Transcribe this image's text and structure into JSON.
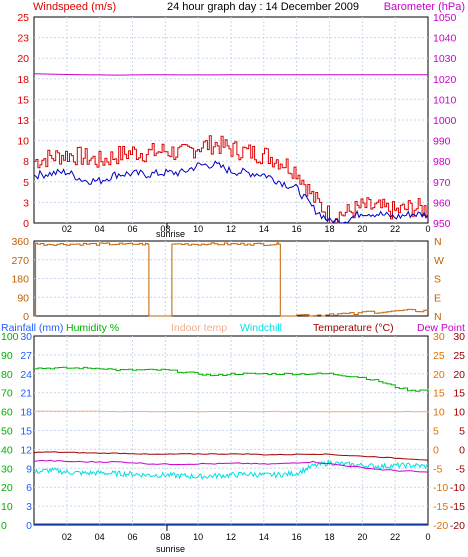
{
  "header": {
    "title": "24 hour graph day : 14 December 2009",
    "windspeed_label": "Windspeed (m/s)",
    "barometer_label": "Barometer (hPa)"
  },
  "legend": {
    "rainfall": "Rainfall (mm)",
    "humidity": "Humidity %",
    "indoor": "Indoor temp",
    "windchill": "Windchill",
    "temperature": "Temperature (°C)",
    "dewpoint": "Dew Point"
  },
  "x_axis": {
    "ticks": [
      "02",
      "04",
      "06",
      "08",
      "10",
      "12",
      "14",
      "16",
      "18",
      "20",
      "22",
      "0"
    ],
    "sunrise_label": "sunrise"
  },
  "colors": {
    "wind_gust": "#e00000",
    "wind_avg": "#0000c0",
    "barometer": "#cc00cc",
    "direction": "#c06000",
    "humidity": "#00b000",
    "indoor": "#f0b090",
    "windchill": "#00e0e0",
    "temperature": "#a00000",
    "dewpoint": "#cc00cc",
    "rainfall": "#2060ff"
  },
  "chart_data": [
    {
      "type": "line",
      "name": "windspeed-barometer",
      "x": [
        0,
        1,
        2,
        3,
        4,
        5,
        6,
        7,
        8,
        9,
        10,
        11,
        12,
        13,
        14,
        15,
        16,
        17,
        18,
        19,
        20,
        21,
        22,
        23,
        24
      ],
      "y_left_ticks": [
        0,
        3,
        5,
        8,
        10,
        13,
        15,
        18,
        20,
        23,
        25
      ],
      "y_right_ticks": [
        950,
        960,
        970,
        980,
        990,
        1000,
        1010,
        1020,
        1030,
        1040,
        1050
      ],
      "ylim_left": [
        0,
        25
      ],
      "ylim_right": [
        950,
        1050
      ],
      "series": [
        {
          "name": "gust",
          "axis": "left",
          "values": [
            7.5,
            8.0,
            8.3,
            8.0,
            7.5,
            8.2,
            8.6,
            8.5,
            8.8,
            8.4,
            9.3,
            9.6,
            9.0,
            8.6,
            8.3,
            7.5,
            6.3,
            3.0,
            0.9,
            1.2,
            2.0,
            1.8,
            1.4,
            1.9,
            1.6
          ]
        },
        {
          "name": "average",
          "axis": "left",
          "values": [
            5.8,
            6.0,
            6.2,
            5.2,
            5.1,
            5.9,
            6.0,
            5.9,
            6.1,
            6.1,
            7.0,
            7.1,
            6.3,
            6.1,
            5.9,
            5.0,
            4.2,
            1.8,
            0.2,
            0.3,
            1.3,
            1.1,
            0.7,
            1.1,
            1.0
          ]
        },
        {
          "name": "barometer",
          "axis": "right",
          "values": [
            1022.5,
            1022.3,
            1022.1,
            1022.0,
            1021.9,
            1021.8,
            1021.9,
            1022.0,
            1022.0,
            1021.9,
            1021.9,
            1021.9,
            1022.0,
            1022.0,
            1022.0,
            1022.0,
            1022.0,
            1022.0,
            1022.0,
            1022.0,
            1022.0,
            1022.0,
            1022.0,
            1022.0,
            1022.0
          ]
        }
      ]
    },
    {
      "type": "line",
      "name": "wind-direction",
      "y_left_ticks": [
        0,
        90,
        180,
        270,
        360
      ],
      "y_right_ticks": [
        "N",
        "E",
        "S",
        "W",
        "N"
      ],
      "ylim": [
        0,
        360
      ],
      "x": [
        0,
        0.1,
        0.2,
        5.4,
        6.9,
        7.0,
        8.3,
        8.4,
        10.6,
        13.0,
        14.9,
        15.0,
        16,
        18,
        20,
        22,
        24
      ],
      "values": [
        0,
        350,
        345,
        345,
        345,
        0,
        0,
        345,
        345,
        345,
        345,
        0,
        5,
        10,
        20,
        25,
        28
      ]
    },
    {
      "type": "line",
      "name": "temperature-humidity",
      "x": [
        0,
        1,
        2,
        3,
        4,
        5,
        6,
        7,
        8,
        9,
        10,
        11,
        12,
        13,
        14,
        15,
        16,
        17,
        18,
        19,
        20,
        21,
        22,
        23,
        24
      ],
      "y_left_ticks": [
        0,
        10,
        20,
        30,
        40,
        50,
        60,
        70,
        80,
        90,
        100
      ],
      "y_rain_ticks": [
        0,
        3,
        6,
        9,
        12,
        15,
        18,
        21,
        24,
        27,
        30
      ],
      "y_right_ticks": [
        -20,
        -15,
        -10,
        -5,
        0,
        5,
        10,
        15,
        20,
        25,
        30
      ],
      "ylim_left": [
        0,
        100
      ],
      "ylim_right": [
        -20,
        30
      ],
      "series": [
        {
          "name": "humidity",
          "axis": "left",
          "values": [
            83,
            83,
            83,
            83,
            83,
            82,
            82,
            82,
            82,
            81,
            80,
            79,
            80,
            80,
            80,
            80,
            80,
            80,
            80,
            79,
            78,
            76,
            73,
            71,
            72
          ]
        },
        {
          "name": "indoor",
          "axis": "right",
          "values": [
            10.1,
            10.1,
            10.1,
            10.1,
            10.1,
            10.0,
            10.0,
            10.0,
            10.0,
            10.0,
            10.0,
            10.0,
            10.0,
            10.0,
            10.0,
            10.0,
            10.0,
            10.0,
            10.0,
            10.0,
            10.0,
            10.0,
            10.0,
            10.0,
            10.0
          ]
        },
        {
          "name": "temperature",
          "axis": "right",
          "values": [
            -0.8,
            -0.7,
            -0.8,
            -0.9,
            -1.0,
            -1.0,
            -1.1,
            -1.3,
            -1.3,
            -1.2,
            -1.2,
            -1.2,
            -1.2,
            -1.2,
            -1.4,
            -1.4,
            -1.3,
            -1.2,
            -1.3,
            -1.6,
            -1.8,
            -2.0,
            -2.3,
            -2.5,
            -2.8
          ]
        },
        {
          "name": "dewpoint",
          "axis": "right",
          "values": [
            -3.0,
            -3.0,
            -3.2,
            -3.3,
            -3.3,
            -3.3,
            -3.5,
            -3.8,
            -3.9,
            -3.9,
            -3.8,
            -3.8,
            -3.7,
            -3.7,
            -3.9,
            -3.8,
            -3.5,
            -3.3,
            -3.8,
            -4.3,
            -4.8,
            -5.3,
            -5.6,
            -5.8,
            -6.1
          ]
        },
        {
          "name": "windchill",
          "axis": "right",
          "values": [
            -6.0,
            -5.5,
            -6.0,
            -6.3,
            -6.2,
            -6.4,
            -6.5,
            -6.8,
            -6.8,
            -7.0,
            -7.2,
            -7.0,
            -6.8,
            -6.5,
            -6.8,
            -6.7,
            -6.3,
            -4.4,
            -3.5,
            -4.0,
            -4.2,
            -4.5,
            -4.3,
            -4.2,
            -4.5
          ]
        },
        {
          "name": "rainfall",
          "axis": "rain",
          "values": [
            0,
            0,
            0,
            0,
            0,
            0,
            0,
            0,
            0,
            0,
            0,
            0,
            0,
            0,
            0,
            0,
            0,
            0,
            0,
            0,
            0,
            0,
            0,
            0,
            0
          ]
        }
      ]
    }
  ]
}
